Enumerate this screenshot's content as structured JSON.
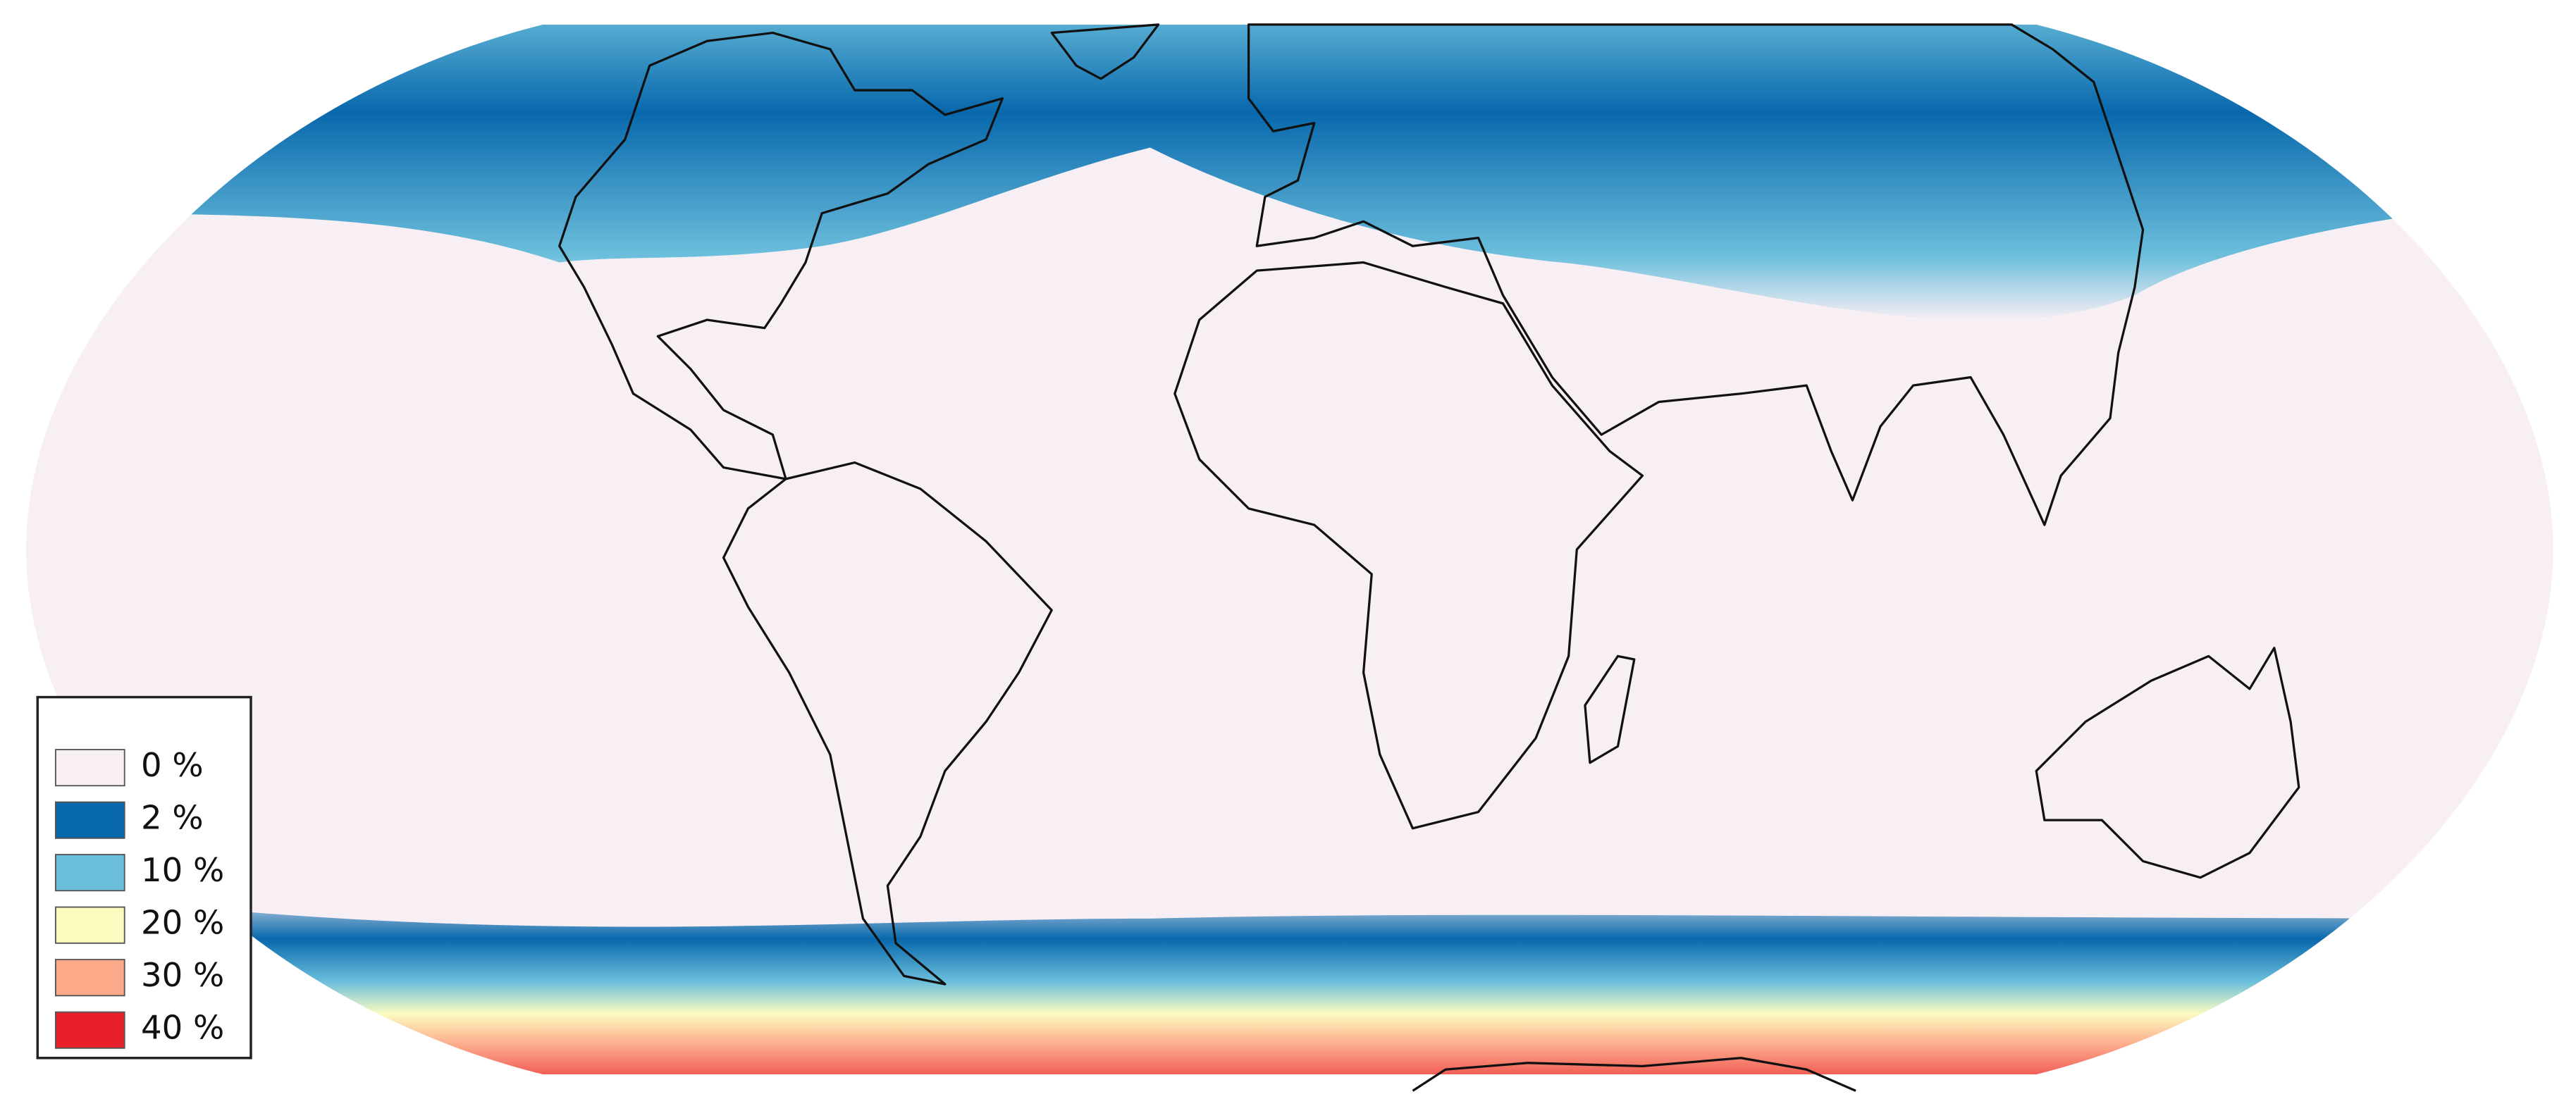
{
  "legend": {
    "items": [
      {
        "label": "0 %",
        "color": "#f8eff4"
      },
      {
        "label": "2 %",
        "color": "#0868ac"
      },
      {
        "label": "10 %",
        "color": "#6cbfdc"
      },
      {
        "label": "20 %",
        "color": "#fbfbc0"
      },
      {
        "label": "30 %",
        "color": "#fca98a"
      },
      {
        "label": "40 %",
        "color": "#e8202a"
      }
    ]
  }
}
